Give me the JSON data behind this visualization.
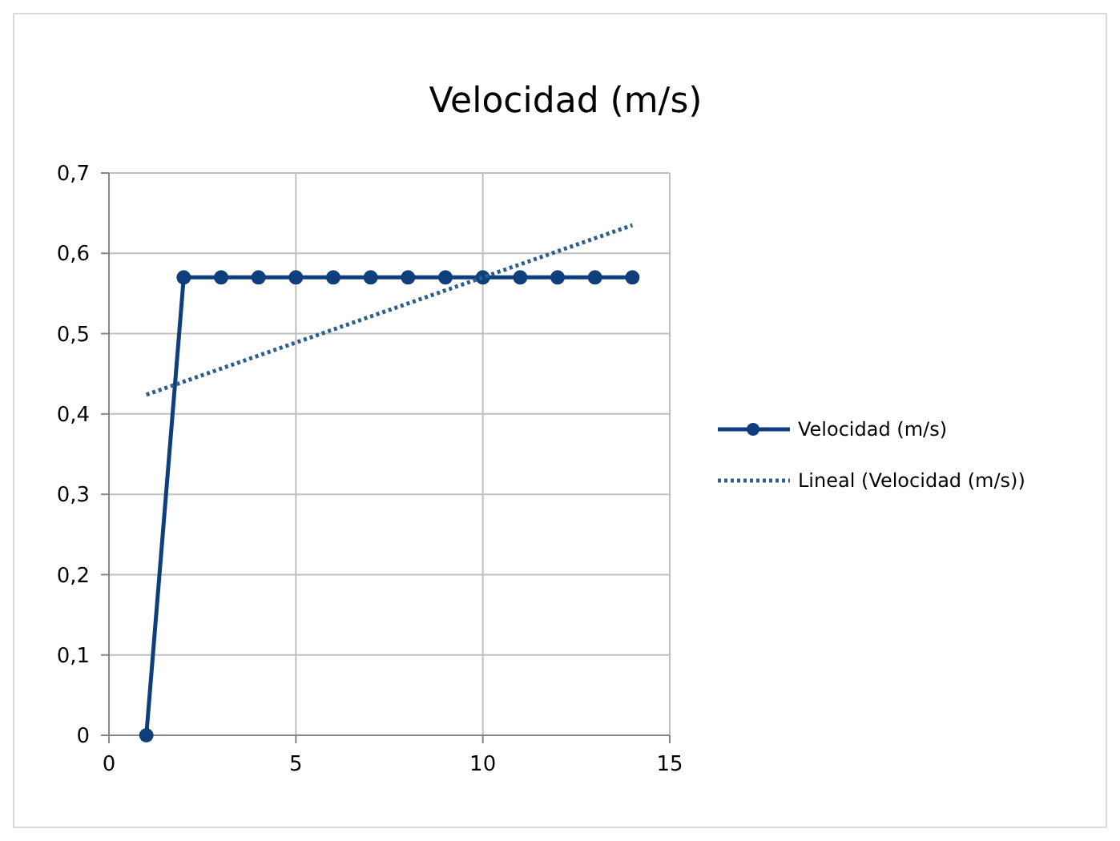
{
  "chart_data": {
    "type": "line",
    "title": "Velocidad (m/s)",
    "xlim": [
      0,
      15
    ],
    "xticks": [
      0,
      5,
      10,
      15
    ],
    "ylim": [
      0,
      0.7
    ],
    "yticks": [
      {
        "value": 0,
        "label": "0"
      },
      {
        "value": 0.1,
        "label": "0,1"
      },
      {
        "value": 0.2,
        "label": "0,2"
      },
      {
        "value": 0.3,
        "label": "0,3"
      },
      {
        "value": 0.4,
        "label": "0,4"
      },
      {
        "value": 0.5,
        "label": "0,5"
      },
      {
        "value": 0.6,
        "label": "0,6"
      },
      {
        "value": 0.7,
        "label": "0,7"
      }
    ],
    "grid": true,
    "legend": "right",
    "series": [
      {
        "name": "Velocidad (m/s)",
        "color": "#0e3f7c",
        "marker": "circle",
        "line_style": "solid",
        "x": [
          1,
          2,
          3,
          4,
          5,
          6,
          7,
          8,
          9,
          10,
          11,
          12,
          13,
          14
        ],
        "values": [
          0,
          0.57,
          0.57,
          0.57,
          0.57,
          0.57,
          0.57,
          0.57,
          0.57,
          0.57,
          0.57,
          0.57,
          0.57,
          0.57
        ]
      },
      {
        "name": "Lineal (Velocidad (m/s))",
        "color": "#2e5f8a",
        "marker": "none",
        "line_style": "dotted",
        "x": [
          1,
          14
        ],
        "values": [
          0.424,
          0.635
        ]
      }
    ]
  }
}
